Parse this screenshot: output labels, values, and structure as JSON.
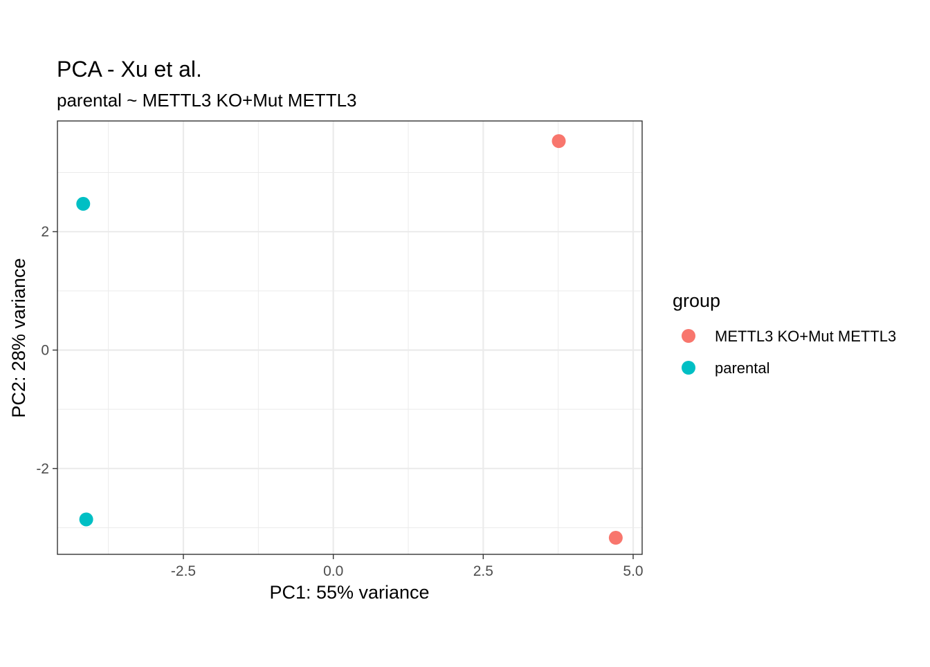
{
  "chart_data": {
    "type": "scatter",
    "title": "PCA - Xu et al.",
    "subtitle": "parental ~ METTL3 KO+Mut METTL3",
    "xlabel": "PC1: 55% variance",
    "ylabel": "PC2: 28% variance",
    "xlim": [
      -4.6,
      5.15
    ],
    "ylim": [
      -3.45,
      3.87
    ],
    "x_ticks": [
      -2.5,
      0.0,
      2.5,
      5.0
    ],
    "x_tick_labels": [
      "-2.5",
      "0.0",
      "2.5",
      "5.0"
    ],
    "x_minor_ticks": [
      -3.75,
      -1.25,
      1.25,
      3.75
    ],
    "y_ticks": [
      -2,
      0,
      2
    ],
    "y_tick_labels": [
      "-2",
      "0",
      "2"
    ],
    "y_minor_ticks": [
      -3,
      -1,
      1,
      3
    ],
    "grid": true,
    "legend": {
      "title": "group",
      "position": "right",
      "entries": [
        {
          "label": "METTL3 KO+Mut METTL3",
          "color": "#F8766D"
        },
        {
          "label": "parental",
          "color": "#00BFC4"
        }
      ]
    },
    "series": [
      {
        "name": "METTL3 KO+Mut METTL3",
        "color": "#F8766D",
        "points": [
          {
            "x": 3.76,
            "y": 3.53
          },
          {
            "x": 4.71,
            "y": -3.17
          }
        ]
      },
      {
        "name": "parental",
        "color": "#00BFC4",
        "points": [
          {
            "x": -4.17,
            "y": 2.47
          },
          {
            "x": -4.12,
            "y": -2.86
          }
        ]
      }
    ]
  }
}
